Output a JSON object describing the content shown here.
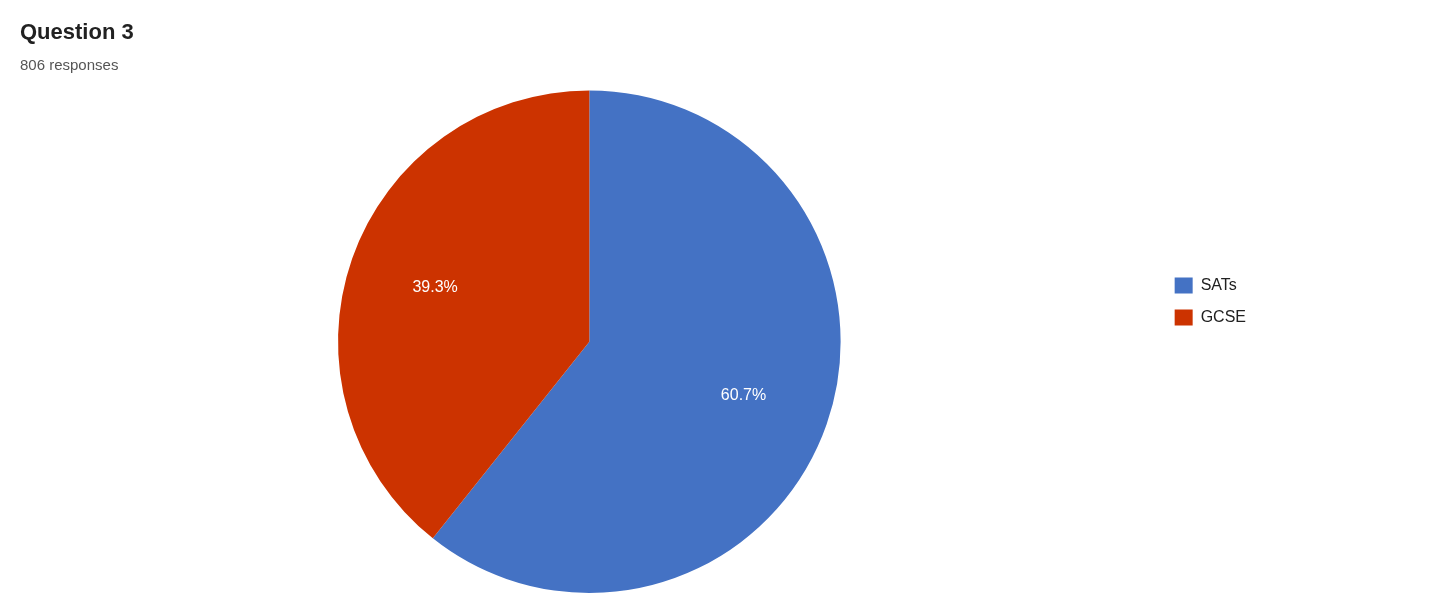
{
  "chart_data": {
    "type": "pie",
    "title": "Question 3",
    "subtitle": "806 responses",
    "categories": [
      "SATs",
      "GCSE"
    ],
    "values": [
      60.7,
      39.3
    ],
    "value_labels": [
      "60.7%",
      "39.3%"
    ],
    "colors": [
      "#4472C4",
      "#CC3300"
    ],
    "data_labels": true,
    "legend": "right"
  }
}
